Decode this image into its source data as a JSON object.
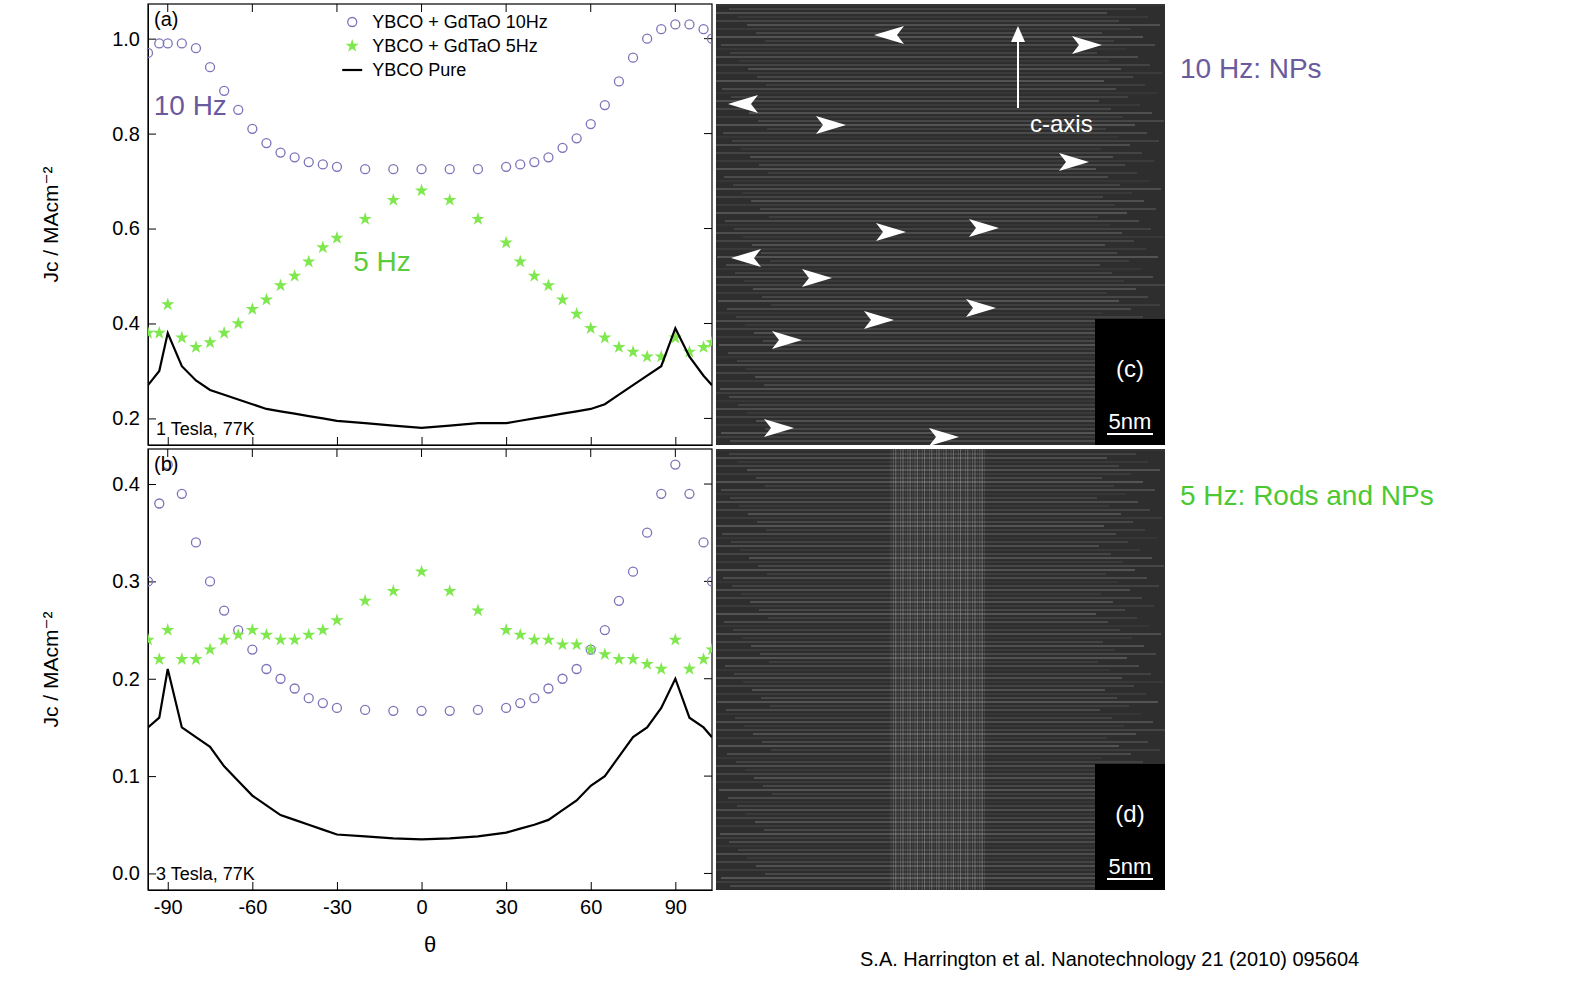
{
  "chart_data": [
    {
      "type": "line",
      "panel": "(a)",
      "subtitle": "1 Tesla, 77K",
      "y_label": "Jc / MAcm⁻²",
      "xlim": [
        -97,
        103
      ],
      "xticks": [
        -90,
        -60,
        -30,
        0,
        30,
        60,
        90
      ],
      "ylim": [
        0.144,
        1.073
      ],
      "yticks": [
        0.2,
        0.4,
        0.6,
        0.8,
        {
          "value": 1,
          "label": "1.0"
        }
      ],
      "tick_labels": "y",
      "legend": "upper center",
      "x": [
        -97,
        -93,
        -90,
        -85,
        -80,
        -75,
        -70,
        -65,
        -60,
        -55,
        -50,
        -45,
        -40,
        -35,
        -30,
        -20,
        -10,
        0,
        10,
        20,
        30,
        35,
        40,
        45,
        50,
        55,
        60,
        65,
        70,
        75,
        80,
        85,
        90,
        95,
        100,
        103
      ],
      "series": [
        {
          "name": "YBCO + GdTaO 10Hz",
          "type": "scatter",
          "marker": "circle-open",
          "color": "#7b74b8",
          "values": [
            0.97,
            0.99,
            0.99,
            0.99,
            0.98,
            0.94,
            0.89,
            0.85,
            0.81,
            0.78,
            0.76,
            0.75,
            0.74,
            0.735,
            0.73,
            0.725,
            0.725,
            0.725,
            0.725,
            0.725,
            0.73,
            0.735,
            0.74,
            0.75,
            0.77,
            0.79,
            0.82,
            0.86,
            0.91,
            0.96,
            1.0,
            1.02,
            1.03,
            1.03,
            1.02,
            1.0
          ]
        },
        {
          "name": "YBCO + GdTaO 5Hz",
          "type": "scatter",
          "marker": "star",
          "color": "#7fe84f",
          "values": [
            0.38,
            0.38,
            0.44,
            0.37,
            0.35,
            0.36,
            0.38,
            0.4,
            0.43,
            0.45,
            0.48,
            0.5,
            0.53,
            0.56,
            0.58,
            0.62,
            0.66,
            0.68,
            0.66,
            0.62,
            0.57,
            0.53,
            0.5,
            0.48,
            0.45,
            0.42,
            0.39,
            0.37,
            0.35,
            0.34,
            0.33,
            0.33,
            0.37,
            0.34,
            0.35,
            0.36
          ]
        },
        {
          "name": "YBCO Pure",
          "type": "line",
          "line_style": "solid",
          "color": "#000000",
          "values": [
            0.27,
            0.3,
            0.38,
            0.31,
            0.28,
            0.26,
            0.25,
            0.24,
            0.23,
            0.22,
            0.215,
            0.21,
            0.205,
            0.2,
            0.195,
            0.19,
            0.185,
            0.18,
            0.185,
            0.19,
            0.19,
            0.195,
            0.2,
            0.205,
            0.21,
            0.215,
            0.22,
            0.23,
            0.25,
            0.27,
            0.29,
            0.31,
            0.39,
            0.33,
            0.29,
            0.27
          ]
        }
      ],
      "annotations": [
        {
          "text": "10 Hz",
          "x": -82,
          "y": 0.84,
          "color": "#6a5a9e"
        },
        {
          "text": "5 Hz",
          "x": -14,
          "y": 0.51,
          "color": "#5ccc3a"
        }
      ]
    },
    {
      "type": "line",
      "panel": "(b)",
      "subtitle": "3 Tesla, 77K",
      "y_label": "Jc / MAcm⁻²",
      "x_label": "θ",
      "xlim": [
        -97,
        103
      ],
      "xticks": [
        -90,
        -60,
        -30,
        0,
        30,
        60,
        90
      ],
      "ylim": [
        -0.017,
        0.436
      ],
      "yticks": [
        {
          "value": 0,
          "label": "0.0"
        },
        0.1,
        0.2,
        0.3,
        0.4
      ],
      "x": [
        -97,
        -93,
        -90,
        -85,
        -80,
        -75,
        -70,
        -65,
        -60,
        -55,
        -50,
        -45,
        -40,
        -35,
        -30,
        -20,
        -10,
        0,
        10,
        20,
        30,
        35,
        40,
        45,
        50,
        55,
        60,
        65,
        70,
        75,
        80,
        85,
        90,
        95,
        100,
        103
      ],
      "series": [
        {
          "type": "scatter",
          "marker": "circle-open",
          "color": "#7b74b8",
          "values": [
            0.3,
            0.38,
            0.42,
            0.39,
            0.34,
            0.3,
            0.27,
            0.25,
            0.23,
            0.21,
            0.2,
            0.19,
            0.18,
            0.175,
            0.17,
            0.168,
            0.167,
            0.167,
            0.167,
            0.168,
            0.17,
            0.175,
            0.18,
            0.19,
            0.2,
            0.21,
            0.23,
            0.25,
            0.28,
            0.31,
            0.35,
            0.39,
            0.42,
            0.39,
            0.34,
            0.3
          ]
        },
        {
          "type": "scatter",
          "marker": "star",
          "color": "#7fe84f",
          "values": [
            0.24,
            0.22,
            0.25,
            0.22,
            0.22,
            0.23,
            0.24,
            0.245,
            0.25,
            0.245,
            0.24,
            0.24,
            0.245,
            0.25,
            0.26,
            0.28,
            0.29,
            0.31,
            0.29,
            0.27,
            0.25,
            0.245,
            0.24,
            0.24,
            0.235,
            0.235,
            0.23,
            0.225,
            0.22,
            0.22,
            0.215,
            0.21,
            0.24,
            0.21,
            0.22,
            0.23
          ]
        },
        {
          "type": "line",
          "line_style": "solid",
          "color": "#000000",
          "values": [
            0.15,
            0.16,
            0.21,
            0.15,
            0.14,
            0.13,
            0.11,
            0.095,
            0.08,
            0.07,
            0.06,
            0.055,
            0.05,
            0.045,
            0.04,
            0.038,
            0.036,
            0.035,
            0.036,
            0.038,
            0.042,
            0.046,
            0.05,
            0.055,
            0.065,
            0.075,
            0.09,
            0.1,
            0.12,
            0.14,
            0.15,
            0.17,
            0.2,
            0.16,
            0.15,
            0.14
          ]
        }
      ]
    }
  ],
  "images": [
    {
      "label": "(c)",
      "scale_bar": "5nm",
      "axis_label": "c-axis",
      "note": "10 Hz:  NPs",
      "note_color": "#6a5a9e"
    },
    {
      "label": "(d)",
      "scale_bar": "5nm",
      "note": "5 Hz: Rods and NPs",
      "note_color": "#4cc832"
    }
  ],
  "citation": "S.A. Harrington et al. Nanotechnology 21 (2010) 095604"
}
